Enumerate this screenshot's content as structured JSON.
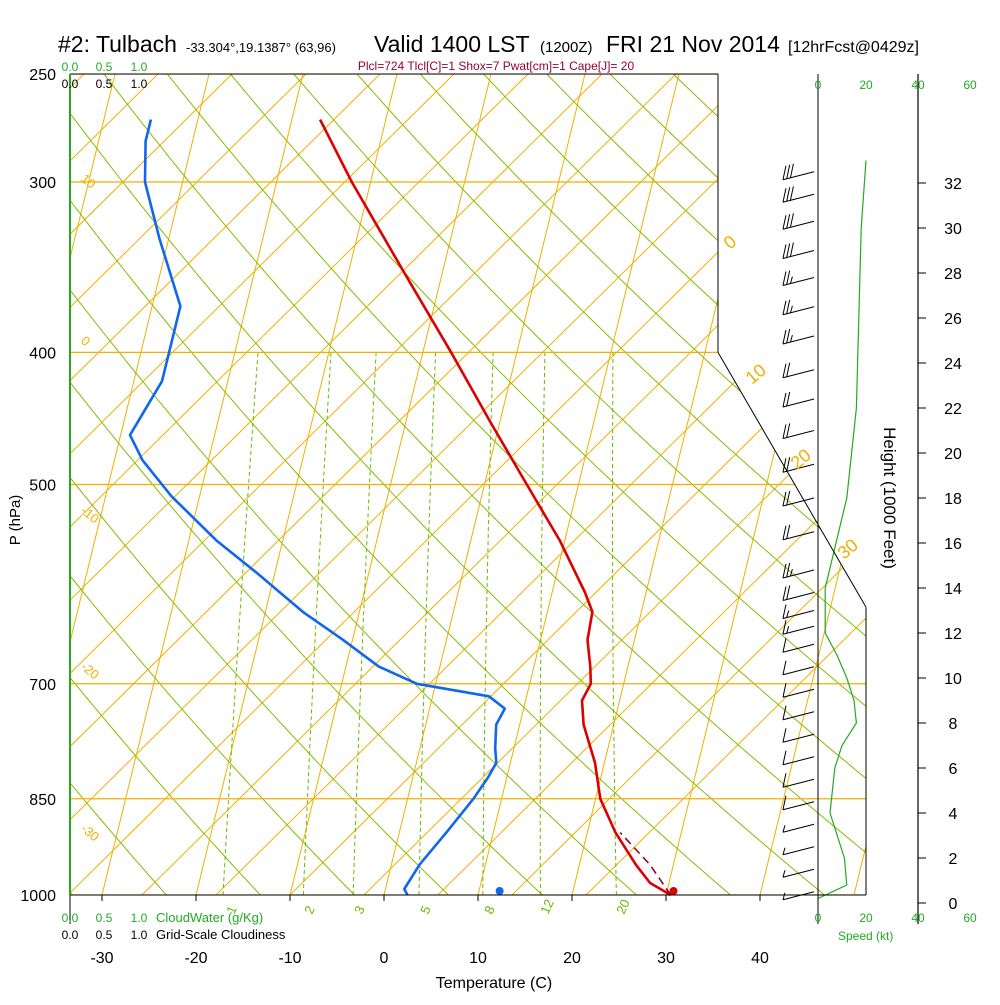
{
  "header": {
    "title_main": "#2: Tulbach",
    "title_coords": "-33.304°,19.1387° (63,96)",
    "valid_label": "Valid 1400 LST",
    "valid_utc": "(1200Z)",
    "valid_date": "FRI 21 Nov 2014",
    "forecast_label": "[12hrFcst@0429z]",
    "params_line": "Plcl=724 Tlcl[C]=1 Shox=7 Pwat[cm]=1 Cape[J]= 20"
  },
  "colors": {
    "temperature": "#dd0000",
    "dewpoint": "#1166ee",
    "isobar": "#f0b000",
    "dry_adiabat": "#88bb00",
    "mixing_ratio": "#66bb00",
    "cloud_water": "#22aa22",
    "wind_barb": "#000000",
    "parcel": "#990022"
  },
  "chart_data": {
    "type": "skew-t",
    "xlabel": "Temperature (C)",
    "ylabel": "P (hPa)",
    "right_axis_label": "Height (1000 Feet)",
    "x_ticks": [
      -30,
      -20,
      -10,
      0,
      10,
      20,
      30,
      40
    ],
    "p_ticks": [
      250,
      300,
      400,
      500,
      700,
      850,
      1000
    ],
    "height_ticks": [
      0,
      2,
      4,
      6,
      8,
      10,
      12,
      14,
      16,
      18,
      20,
      22,
      24,
      26,
      28,
      30,
      32
    ],
    "xlim": [
      -33,
      36
    ],
    "plim": [
      250,
      1000
    ],
    "temperature_profile": [
      {
        "p": 1000,
        "t": 30.5
      },
      {
        "p": 980,
        "t": 28.0
      },
      {
        "p": 950,
        "t": 26.0
      },
      {
        "p": 900,
        "t": 23.0
      },
      {
        "p": 850,
        "t": 20.5
      },
      {
        "p": 800,
        "t": 19.0
      },
      {
        "p": 750,
        "t": 16.8
      },
      {
        "p": 720,
        "t": 16.0
      },
      {
        "p": 700,
        "t": 16.5
      },
      {
        "p": 680,
        "t": 16.0
      },
      {
        "p": 650,
        "t": 15.0
      },
      {
        "p": 620,
        "t": 14.8
      },
      {
        "p": 600,
        "t": 13.5
      },
      {
        "p": 550,
        "t": 9.5
      },
      {
        "p": 500,
        "t": 4.5
      },
      {
        "p": 450,
        "t": -1.0
      },
      {
        "p": 400,
        "t": -7.0
      },
      {
        "p": 350,
        "t": -14.0
      },
      {
        "p": 300,
        "t": -22.0
      },
      {
        "p": 270,
        "t": -27.0
      }
    ],
    "dewpoint_profile": [
      {
        "p": 1000,
        "t": 2.5
      },
      {
        "p": 990,
        "t": 2.0
      },
      {
        "p": 950,
        "t": 3.0
      },
      {
        "p": 900,
        "t": 5.0
      },
      {
        "p": 850,
        "t": 7.0
      },
      {
        "p": 820,
        "t": 8.0
      },
      {
        "p": 800,
        "t": 8.5
      },
      {
        "p": 780,
        "t": 8.0
      },
      {
        "p": 750,
        "t": 7.5
      },
      {
        "p": 730,
        "t": 8.0
      },
      {
        "p": 715,
        "t": 6.0
      },
      {
        "p": 700,
        "t": -2.0
      },
      {
        "p": 680,
        "t": -6.5
      },
      {
        "p": 650,
        "t": -11.0
      },
      {
        "p": 620,
        "t": -16.0
      },
      {
        "p": 580,
        "t": -22.0
      },
      {
        "p": 550,
        "t": -27.0
      },
      {
        "p": 510,
        "t": -33.0
      },
      {
        "p": 480,
        "t": -37.0
      },
      {
        "p": 460,
        "t": -39.0
      },
      {
        "p": 420,
        "t": -37.0
      },
      {
        "p": 400,
        "t": -37.0
      },
      {
        "p": 370,
        "t": -37.0
      },
      {
        "p": 330,
        "t": -41.0
      },
      {
        "p": 300,
        "t": -44.0
      },
      {
        "p": 280,
        "t": -45.0
      },
      {
        "p": 270,
        "t": -45.0
      }
    ],
    "parcel_path": [
      {
        "p": 1000,
        "t": 30.5
      },
      {
        "p": 950,
        "t": 27.5
      },
      {
        "p": 900,
        "t": 23.5
      }
    ],
    "surface_temperature_marker": {
      "p": 1000,
      "t": 30.8
    },
    "surface_dewpoint_marker": {
      "p": 1000,
      "t": 12.3
    },
    "isotherm_labels": [
      "10",
      "0",
      "-10",
      "-20",
      "-30"
    ],
    "dry_adiabat_labels": [
      "0",
      "10",
      "20",
      "30"
    ],
    "mixing_ratio_labels": [
      "1",
      "2",
      "3",
      "5",
      "8",
      "12",
      "20"
    ],
    "mixing_ratio_values": [
      1,
      2,
      3,
      5,
      8,
      12,
      20
    ],
    "cloud_water_axis": {
      "ticks": [
        "0.0",
        "0.5",
        "1.0"
      ],
      "label": "CloudWater (g/Kg)"
    },
    "cloudiness_axis": {
      "ticks": [
        "0.0",
        "0.5",
        "1.0"
      ],
      "label": "Grid-Scale Cloudiness"
    },
    "wind_speed_axis": {
      "ticks": [
        "0",
        "20",
        "40",
        "60"
      ],
      "label": "Speed (kt)"
    },
    "wind_barbs": [
      {
        "h": 32.5,
        "kt": 30
      },
      {
        "h": 31.5,
        "kt": 30
      },
      {
        "h": 30.3,
        "kt": 30
      },
      {
        "h": 29.0,
        "kt": 30
      },
      {
        "h": 27.8,
        "kt": 25
      },
      {
        "h": 26.5,
        "kt": 25
      },
      {
        "h": 25.2,
        "kt": 25
      },
      {
        "h": 23.7,
        "kt": 20
      },
      {
        "h": 22.4,
        "kt": 20
      },
      {
        "h": 21.0,
        "kt": 20
      },
      {
        "h": 19.5,
        "kt": 20
      },
      {
        "h": 18.0,
        "kt": 20
      },
      {
        "h": 16.5,
        "kt": 20
      },
      {
        "h": 14.8,
        "kt": 25
      },
      {
        "h": 13.8,
        "kt": 20
      },
      {
        "h": 13.0,
        "kt": 15
      },
      {
        "h": 12.3,
        "kt": 15
      },
      {
        "h": 11.5,
        "kt": 10
      },
      {
        "h": 10.5,
        "kt": 10
      },
      {
        "h": 9.5,
        "kt": 10
      },
      {
        "h": 8.5,
        "kt": 10
      },
      {
        "h": 7.5,
        "kt": 10
      },
      {
        "h": 6.5,
        "kt": 10
      },
      {
        "h": 5.5,
        "kt": 10
      },
      {
        "h": 4.5,
        "kt": 10
      },
      {
        "h": 3.5,
        "kt": 5
      },
      {
        "h": 2.5,
        "kt": 5
      },
      {
        "h": 1.5,
        "kt": 5
      },
      {
        "h": 0.5,
        "kt": 5
      }
    ],
    "wind_speed_profile": [
      {
        "h": 0.2,
        "kt": 0
      },
      {
        "h": 0.8,
        "kt": 12
      },
      {
        "h": 2,
        "kt": 11
      },
      {
        "h": 4,
        "kt": 5
      },
      {
        "h": 6,
        "kt": 7
      },
      {
        "h": 7,
        "kt": 10
      },
      {
        "h": 8,
        "kt": 16
      },
      {
        "h": 9,
        "kt": 15
      },
      {
        "h": 10,
        "kt": 12
      },
      {
        "h": 11,
        "kt": 8
      },
      {
        "h": 12,
        "kt": 3
      },
      {
        "h": 14,
        "kt": 3
      },
      {
        "h": 18,
        "kt": 12
      },
      {
        "h": 22,
        "kt": 16
      },
      {
        "h": 26,
        "kt": 17
      },
      {
        "h": 30,
        "kt": 18
      },
      {
        "h": 33,
        "kt": 20
      }
    ]
  }
}
